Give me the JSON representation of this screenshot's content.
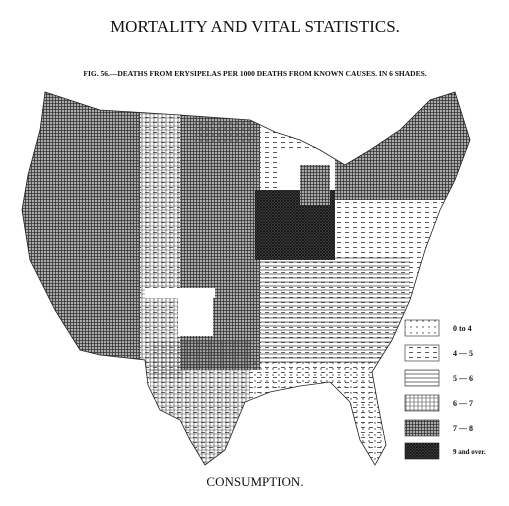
{
  "header": {
    "title": "MORTALITY AND VITAL STATISTICS.",
    "caption": "FIG. 56.—DEATHS FROM ERYSIPELAS PER 1000 DEATHS FROM KNOWN CAUSES.  IN 6 SHADES."
  },
  "legend": {
    "entries": [
      "0 to 4",
      "4 — 5",
      "5 — 6",
      "6 — 7",
      "7 — 8",
      "9 and over."
    ]
  },
  "footer": {
    "label": "CONSUMPTION."
  }
}
